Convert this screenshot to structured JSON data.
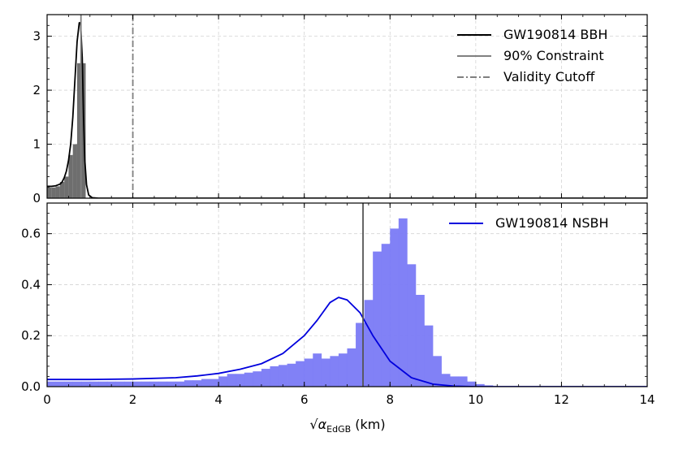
{
  "chart_data": [
    {
      "type": "histogram+line",
      "panel": "top",
      "xlim": [
        0,
        14
      ],
      "ylim": [
        0,
        3.4
      ],
      "x_ticks": [
        0,
        2,
        4,
        6,
        8,
        10,
        12,
        14
      ],
      "y_ticks": [
        0,
        1,
        2,
        3
      ],
      "y_tick_labels": [
        "0",
        "1",
        "2",
        "3"
      ],
      "grid": true,
      "legend_position": "top-right",
      "histogram": {
        "color": "#555555",
        "bins": [
          {
            "x0": 0.0,
            "x1": 0.1,
            "y": 0.2
          },
          {
            "x0": 0.1,
            "x1": 0.2,
            "y": 0.2
          },
          {
            "x0": 0.2,
            "x1": 0.3,
            "y": 0.22
          },
          {
            "x0": 0.3,
            "x1": 0.4,
            "y": 0.3
          },
          {
            "x0": 0.4,
            "x1": 0.5,
            "y": 0.4
          },
          {
            "x0": 0.5,
            "x1": 0.6,
            "y": 0.8
          },
          {
            "x0": 0.6,
            "x1": 0.7,
            "y": 1.0
          },
          {
            "x0": 0.7,
            "x1": 0.8,
            "y": 2.5
          },
          {
            "x0": 0.8,
            "x1": 0.9,
            "y": 2.5
          }
        ]
      },
      "kde": {
        "name": "GW190814 BBH",
        "color": "#000000",
        "points": [
          [
            0.0,
            0.22
          ],
          [
            0.1,
            0.22
          ],
          [
            0.2,
            0.23
          ],
          [
            0.3,
            0.26
          ],
          [
            0.35,
            0.3
          ],
          [
            0.4,
            0.38
          ],
          [
            0.45,
            0.5
          ],
          [
            0.5,
            0.7
          ],
          [
            0.55,
            1.0
          ],
          [
            0.6,
            1.5
          ],
          [
            0.65,
            2.2
          ],
          [
            0.7,
            2.9
          ],
          [
            0.75,
            3.25
          ],
          [
            0.78,
            3.25
          ],
          [
            0.82,
            2.6
          ],
          [
            0.85,
            1.5
          ],
          [
            0.88,
            0.7
          ],
          [
            0.92,
            0.25
          ],
          [
            0.97,
            0.06
          ],
          [
            1.05,
            0.01
          ],
          [
            1.2,
            0.0
          ],
          [
            14,
            0.0
          ]
        ]
      },
      "vlines": [
        {
          "name": "90% Constraint",
          "x": 0.79,
          "color": "#808080",
          "style": "solid"
        },
        {
          "name": "Validity Cutoff",
          "x": 2.0,
          "color": "#808080",
          "style": "dashdot"
        }
      ],
      "legend": [
        "GW190814 BBH",
        "90% Constraint",
        "Validity Cutoff"
      ]
    },
    {
      "type": "histogram+line",
      "panel": "bottom",
      "xlim": [
        0,
        14
      ],
      "ylim": [
        0,
        0.72
      ],
      "x_ticks": [
        0,
        2,
        4,
        6,
        8,
        10,
        12,
        14
      ],
      "x_tick_labels": [
        "0",
        "2",
        "4",
        "6",
        "8",
        "10",
        "12",
        "14"
      ],
      "y_ticks": [
        0,
        0.2,
        0.4,
        0.6
      ],
      "y_tick_labels": [
        "0.0",
        "0.2",
        "0.4",
        "0.6"
      ],
      "xlabel_prefix": "√",
      "xlabel_var": "α",
      "xlabel_sub": "EdGB",
      "xlabel_unit": " (km)",
      "grid": true,
      "legend_position": "top-right",
      "histogram": {
        "color": "#7a7af5",
        "bin_width": 0.2,
        "x_start": 0.0,
        "heights": [
          0.02,
          0.02,
          0.02,
          0.02,
          0.02,
          0.02,
          0.02,
          0.02,
          0.02,
          0.02,
          0.02,
          0.02,
          0.02,
          0.02,
          0.02,
          0.02,
          0.025,
          0.025,
          0.03,
          0.03,
          0.04,
          0.05,
          0.05,
          0.055,
          0.06,
          0.07,
          0.08,
          0.085,
          0.09,
          0.1,
          0.11,
          0.13,
          0.11,
          0.12,
          0.13,
          0.15,
          0.25,
          0.34,
          0.53,
          0.56,
          0.62,
          0.66,
          0.48,
          0.36,
          0.24,
          0.12,
          0.05,
          0.04,
          0.04,
          0.02,
          0.01,
          0.005,
          0.0,
          0.0,
          0.0,
          0.0,
          0.0,
          0.0,
          0.0,
          0.0,
          0.0,
          0.0,
          0.0,
          0.0,
          0.0,
          0.0,
          0.0,
          0.0,
          0.0,
          0.0
        ]
      },
      "kde": {
        "name": "GW190814 NSBH",
        "color": "#0000dd",
        "points": [
          [
            0.0,
            0.028
          ],
          [
            1.0,
            0.028
          ],
          [
            2.0,
            0.03
          ],
          [
            3.0,
            0.035
          ],
          [
            3.5,
            0.042
          ],
          [
            4.0,
            0.052
          ],
          [
            4.5,
            0.068
          ],
          [
            5.0,
            0.09
          ],
          [
            5.5,
            0.13
          ],
          [
            6.0,
            0.2
          ],
          [
            6.3,
            0.26
          ],
          [
            6.6,
            0.33
          ],
          [
            6.8,
            0.35
          ],
          [
            7.0,
            0.34
          ],
          [
            7.3,
            0.29
          ],
          [
            7.6,
            0.2
          ],
          [
            8.0,
            0.1
          ],
          [
            8.5,
            0.035
          ],
          [
            9.0,
            0.01
          ],
          [
            9.5,
            0.002
          ],
          [
            10.0,
            0.0
          ],
          [
            14.0,
            0.0
          ]
        ]
      },
      "vlines": [
        {
          "name": "90% Constraint",
          "x": 7.37,
          "color": "#555555",
          "style": "solid"
        }
      ],
      "legend": [
        "GW190814 NSBH"
      ]
    }
  ]
}
